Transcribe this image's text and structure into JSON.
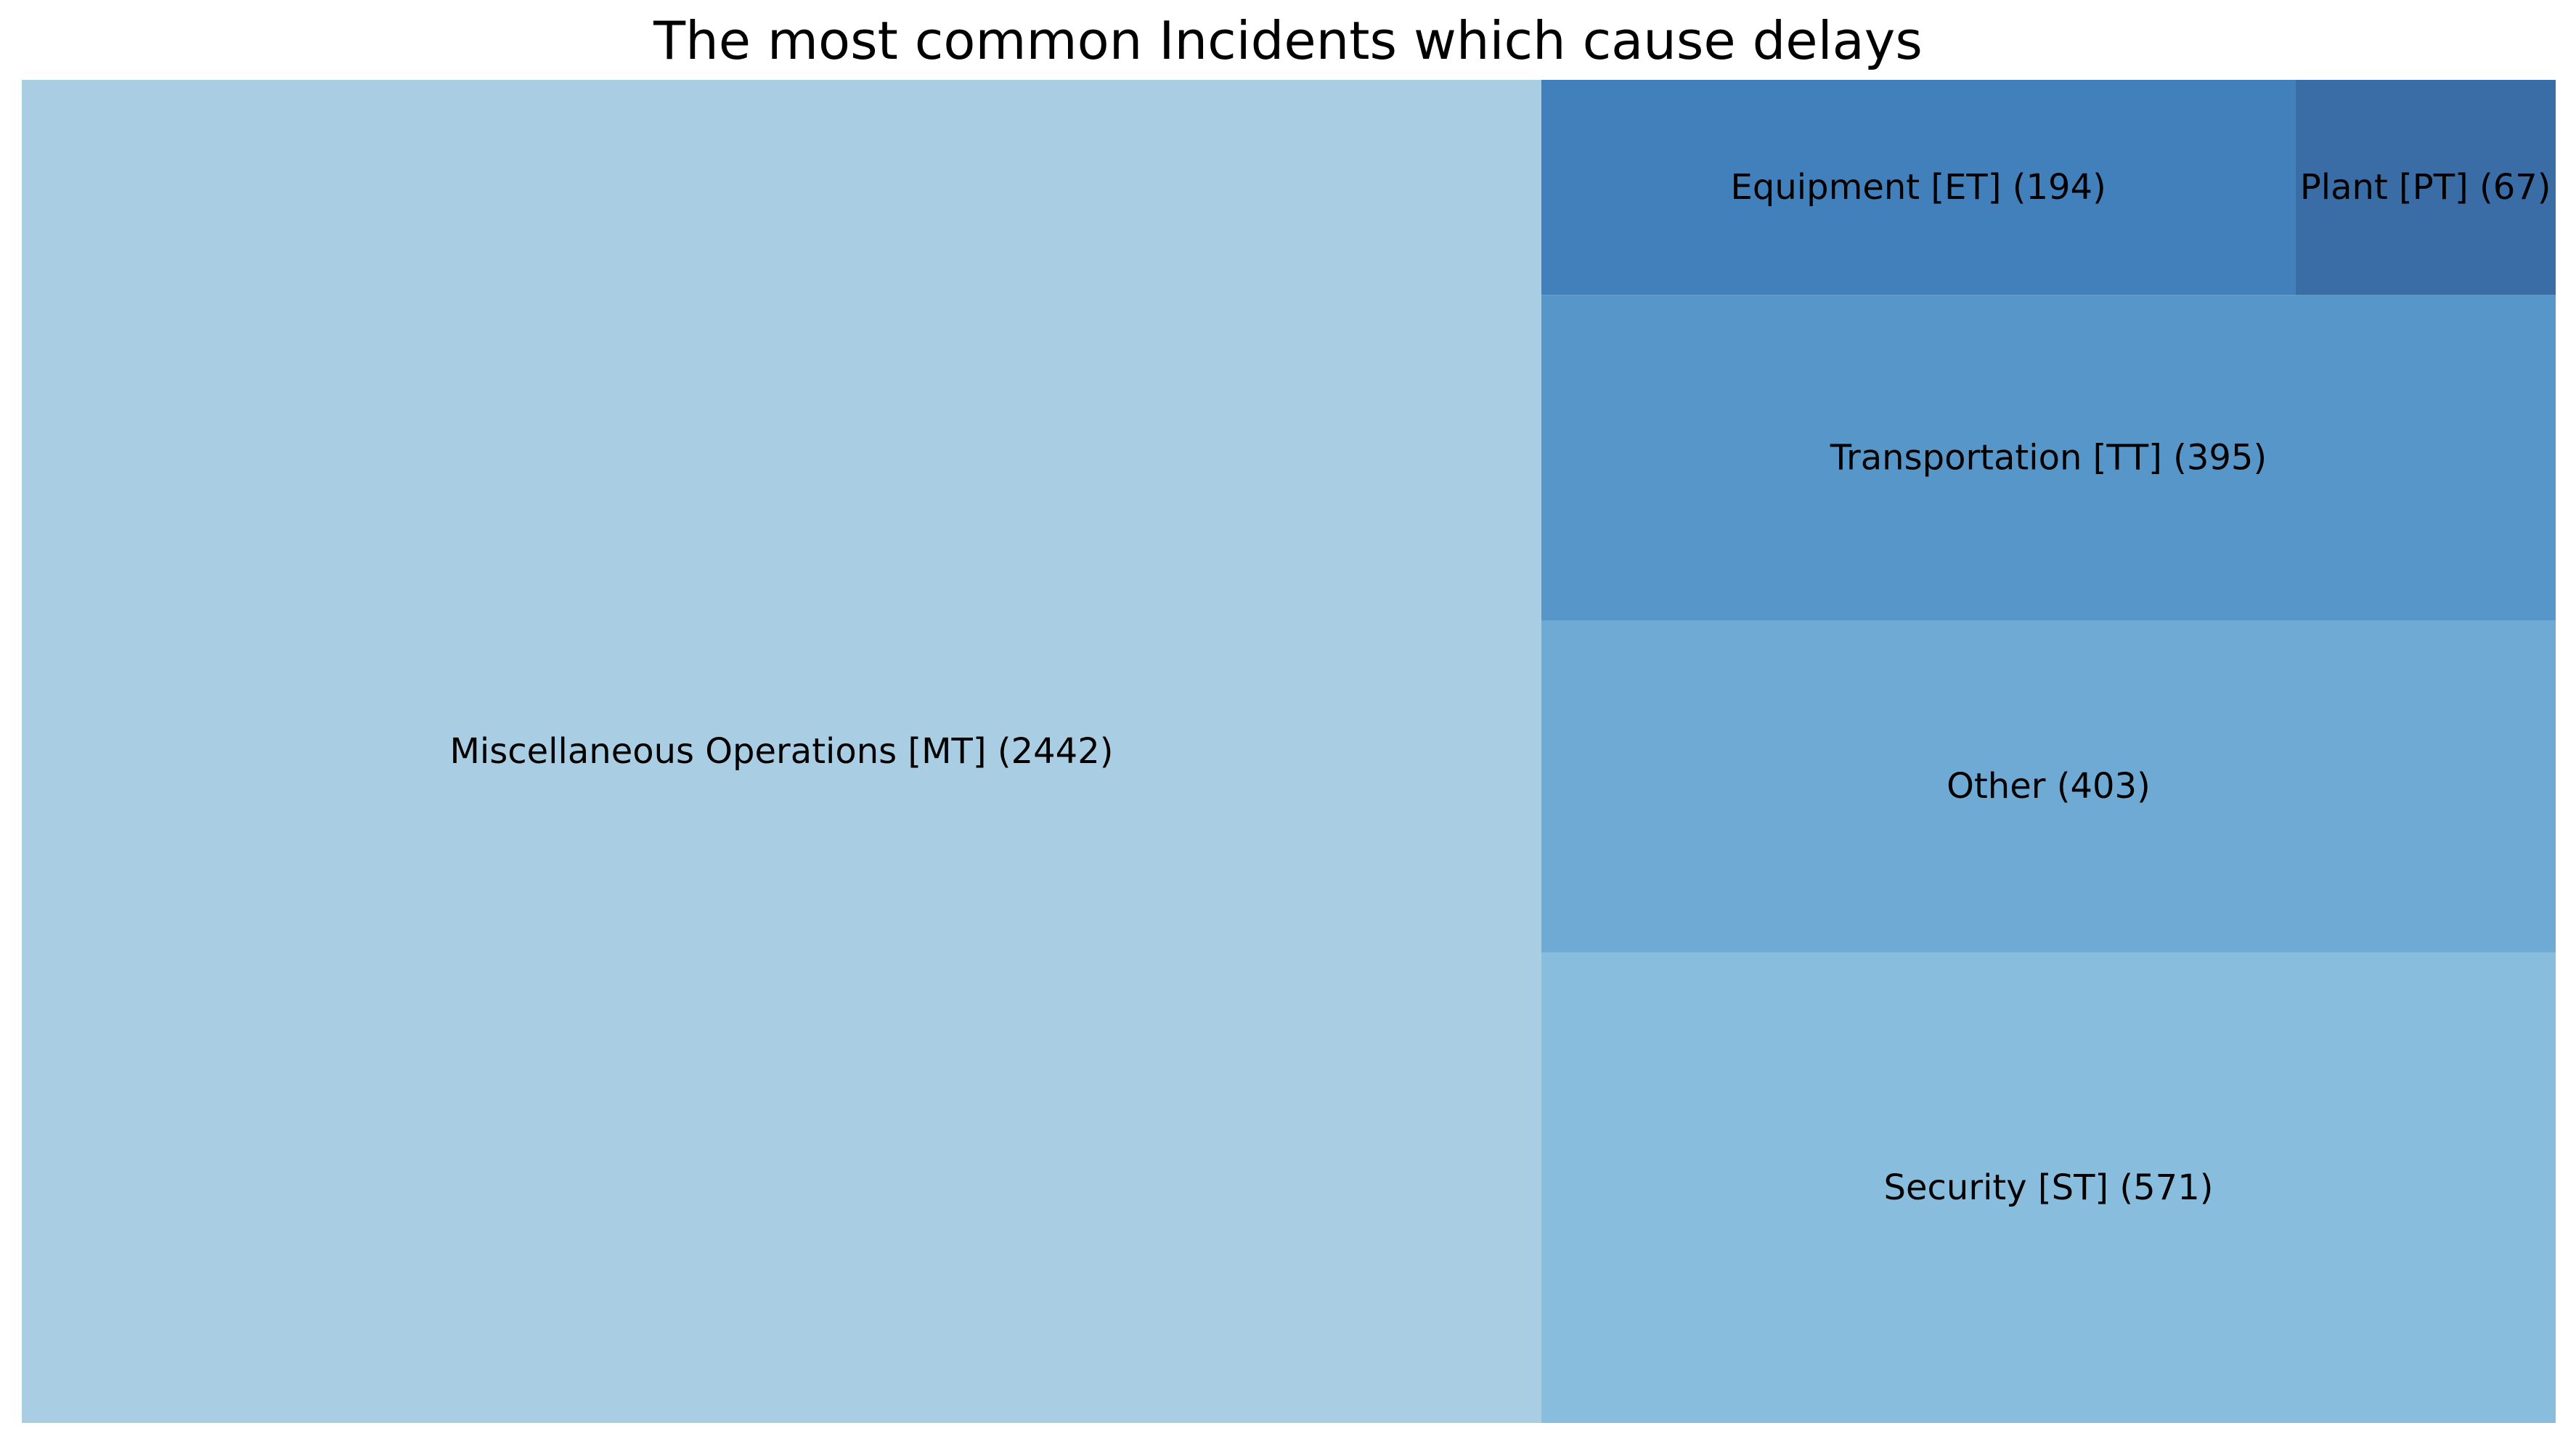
{
  "chart_data": {
    "type": "treemap",
    "title": "The most common Incidents which cause delays",
    "items": [
      {
        "label": "Miscellaneous Operations [MT] (2442)",
        "value": 2442,
        "color": "#a9cee4"
      },
      {
        "label": "Security [ST] (571)",
        "value": 571,
        "color": "#89bddd"
      },
      {
        "label": "Other (403)",
        "value": 403,
        "color": "#6eaad4"
      },
      {
        "label": "Transportation [TT] (395)",
        "value": 395,
        "color": "#5696c8"
      },
      {
        "label": "Equipment [ET] (194)",
        "value": 194,
        "color": "#4280bc"
      },
      {
        "label": "Plant [PT] (67)",
        "value": 67,
        "color": "#3a6ca5"
      }
    ]
  }
}
